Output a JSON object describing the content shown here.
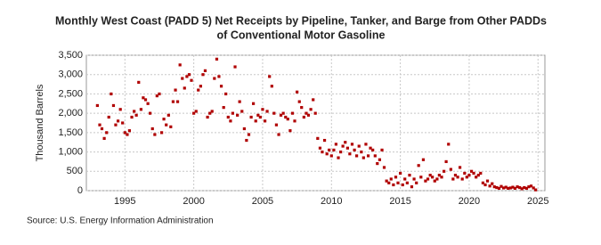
{
  "chart_data": {
    "type": "scatter",
    "title_lines": [
      "Monthly West Coast (PADD 5) Net Receipts by Pipeline, Tanker, and Barge from Other PADDs",
      "of Conventional Motor Gasoline"
    ],
    "y_label": "Thousand Barrels",
    "source": "Source: U.S. Energy Information Administration",
    "color": "#b00000",
    "grid": true,
    "xlim": [
      1992.2,
      2025.5
    ],
    "ylim": [
      0,
      3500
    ],
    "xticks": [
      1995,
      2000,
      2005,
      2010,
      2015,
      2020,
      2025
    ],
    "yticks": [
      0,
      500,
      {
        "value": 1000,
        "label": "1,000"
      },
      {
        "value": 1500,
        "label": "1,500"
      },
      {
        "value": 2000,
        "label": "2,000"
      },
      {
        "value": 2500,
        "label": "2,500"
      },
      {
        "value": 3000,
        "label": "3,000"
      },
      {
        "value": 3500,
        "label": "3,500"
      }
    ],
    "x": [
      1993,
      1993.17,
      1993.33,
      1993.5,
      1993.67,
      1993.83,
      1994,
      1994.17,
      1994.33,
      1994.5,
      1994.67,
      1994.83,
      1995,
      1995.17,
      1995.33,
      1995.5,
      1995.67,
      1995.83,
      1996,
      1996.17,
      1996.33,
      1996.5,
      1996.67,
      1996.83,
      1997,
      1997.17,
      1997.33,
      1997.5,
      1997.67,
      1997.83,
      1998,
      1998.17,
      1998.33,
      1998.5,
      1998.67,
      1998.83,
      1999,
      1999.17,
      1999.33,
      1999.5,
      1999.67,
      1999.83,
      2000,
      2000.17,
      2000.33,
      2000.5,
      2000.67,
      2000.83,
      2001,
      2001.17,
      2001.33,
      2001.5,
      2001.67,
      2001.83,
      2002,
      2002.17,
      2002.33,
      2002.5,
      2002.67,
      2002.83,
      2003,
      2003.17,
      2003.33,
      2003.5,
      2003.67,
      2003.83,
      2004,
      2004.17,
      2004.33,
      2004.5,
      2004.67,
      2004.83,
      2005,
      2005.17,
      2005.33,
      2005.5,
      2005.67,
      2005.83,
      2006,
      2006.17,
      2006.33,
      2006.5,
      2006.67,
      2006.83,
      2007,
      2007.17,
      2007.33,
      2007.5,
      2007.67,
      2007.83,
      2008,
      2008.17,
      2008.33,
      2008.5,
      2008.67,
      2008.83,
      2009,
      2009.17,
      2009.33,
      2009.5,
      2009.67,
      2009.83,
      2010,
      2010.17,
      2010.33,
      2010.5,
      2010.67,
      2010.83,
      2011,
      2011.17,
      2011.33,
      2011.5,
      2011.67,
      2011.83,
      2012,
      2012.17,
      2012.33,
      2012.5,
      2012.67,
      2012.83,
      2013,
      2013.17,
      2013.33,
      2013.5,
      2013.67,
      2013.83,
      2014,
      2014.17,
      2014.33,
      2014.5,
      2014.67,
      2014.83,
      2015,
      2015.17,
      2015.33,
      2015.5,
      2015.67,
      2015.83,
      2016,
      2016.17,
      2016.33,
      2016.5,
      2016.67,
      2016.83,
      2017,
      2017.17,
      2017.33,
      2017.5,
      2017.67,
      2017.83,
      2018,
      2018.17,
      2018.33,
      2018.5,
      2018.67,
      2018.83,
      2019,
      2019.17,
      2019.33,
      2019.5,
      2019.67,
      2019.83,
      2020,
      2020.17,
      2020.33,
      2020.5,
      2020.67,
      2020.83,
      2021,
      2021.17,
      2021.33,
      2021.5,
      2021.67,
      2021.83,
      2022,
      2022.17,
      2022.33,
      2022.5,
      2022.67,
      2022.83,
      2023,
      2023.17,
      2023.33,
      2023.5,
      2023.67,
      2023.83,
      2024,
      2024.17,
      2024.33,
      2024.5,
      2024.67,
      2024.83
    ],
    "values": [
      2200,
      1700,
      1600,
      1350,
      1500,
      1900,
      2500,
      2200,
      1700,
      1800,
      2100,
      1750,
      1500,
      1450,
      1550,
      1900,
      2050,
      1950,
      2800,
      2100,
      2400,
      2350,
      2250,
      2000,
      1600,
      1450,
      2450,
      2500,
      1500,
      1850,
      1700,
      1950,
      1650,
      2300,
      2600,
      2300,
      3250,
      2900,
      2650,
      2950,
      3000,
      2850,
      2000,
      2050,
      2600,
      2700,
      3000,
      3100,
      1900,
      2000,
      2050,
      2900,
      3400,
      2950,
      2700,
      2150,
      2500,
      1900,
      1800,
      2000,
      3200,
      1950,
      2300,
      2050,
      1600,
      1300,
      1450,
      1900,
      2250,
      1800,
      1950,
      1900,
      2100,
      1800,
      2050,
      2950,
      2700,
      2000,
      1700,
      1450,
      1950,
      2000,
      1900,
      1850,
      1550,
      2000,
      1800,
      2550,
      2300,
      2150,
      1900,
      2000,
      1950,
      2100,
      2350,
      2000,
      1350,
      1100,
      1000,
      1300,
      950,
      1050,
      900,
      1050,
      1200,
      850,
      1000,
      1150,
      1250,
      1100,
      950,
      1200,
      1050,
      900,
      1150,
      1000,
      850,
      1200,
      900,
      1100,
      1050,
      900,
      700,
      800,
      1050,
      600,
      250,
      200,
      300,
      150,
      350,
      200,
      450,
      150,
      300,
      200,
      400,
      100,
      300,
      200,
      650,
      350,
      800,
      250,
      300,
      400,
      350,
      250,
      300,
      400,
      350,
      500,
      750,
      1200,
      550,
      300,
      400,
      350,
      600,
      300,
      450,
      350,
      400,
      500,
      450,
      350,
      400,
      450,
      200,
      150,
      250,
      120,
      180,
      100,
      80,
      60,
      110,
      70,
      90,
      60,
      70,
      90,
      60,
      100,
      80,
      50,
      80,
      60,
      100,
      120,
      70,
      20
    ]
  }
}
